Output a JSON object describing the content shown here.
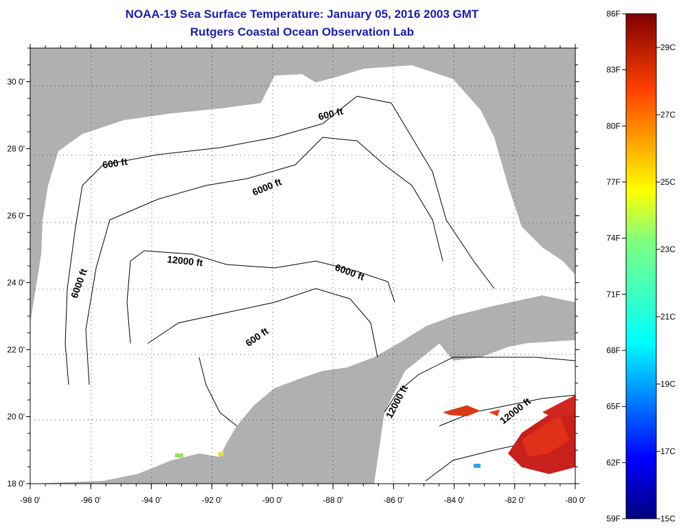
{
  "title_line1": "NOAA-19 Sea Surface Temperature:  January 05, 2016 2003 GMT",
  "title_line2": "Rutgers Coastal Ocean Observation Lab",
  "map": {
    "lon_range": [
      -98,
      -80
    ],
    "lat_range": [
      18,
      31
    ],
    "x_ticks": [
      "-98 0'",
      "-96 0'",
      "-94 0'",
      "-92 0'",
      "-90 0'",
      "-88 0'",
      "-86 0'",
      "-84 0'",
      "-82 0'",
      "-80 0'"
    ],
    "y_ticks": [
      "18 0'",
      "20 0'",
      "22 0'",
      "24 0'",
      "26 0'",
      "28 0'",
      "30 0'"
    ],
    "grid": "dotted",
    "colors": {
      "land": "#b0b0b0",
      "water": "#ffffff",
      "contour": "#000000"
    }
  },
  "contour_labels": {
    "c1": "600 ft",
    "c2": "600 ft",
    "c3": "6000 ft",
    "c4": "6000 ft",
    "c5": "12000 ft",
    "c6": "6000 ft",
    "c7": "600 ft",
    "c8": "12000 ft",
    "c9": "12000 ft"
  },
  "colorbar": {
    "f_labels": [
      "86F",
      "83F",
      "80F",
      "77F",
      "74F",
      "71F",
      "68F",
      "65F",
      "62F",
      "59F"
    ],
    "c_labels": [
      "29C",
      "27C",
      "25C",
      "23C",
      "21C",
      "19C",
      "17C",
      "15C"
    ]
  }
}
